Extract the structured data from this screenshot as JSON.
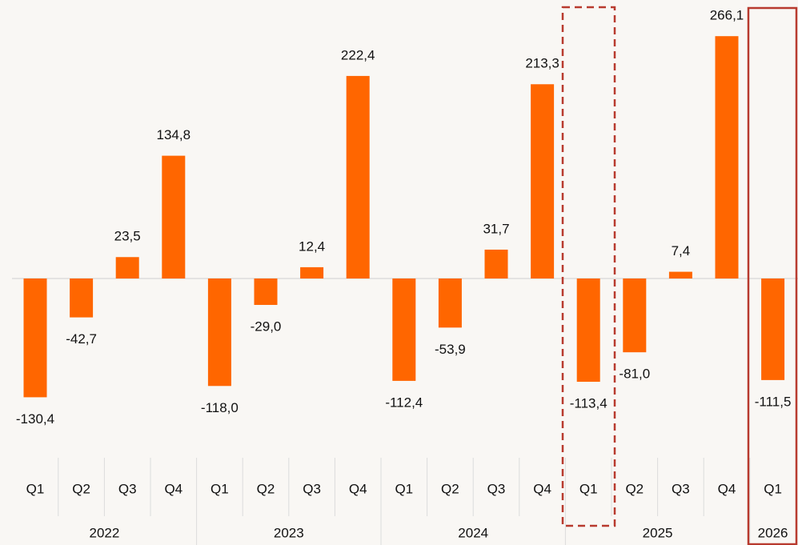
{
  "chart_data": {
    "type": "bar",
    "color": "#ff6600",
    "groups": [
      {
        "label": "2022",
        "categories": [
          "Q1",
          "Q2",
          "Q3",
          "Q4"
        ],
        "values": [
          -130.4,
          -42.7,
          23.5,
          134.8
        ],
        "value_labels": [
          "-130,4",
          "-42,7",
          "23,5",
          "134,8"
        ]
      },
      {
        "label": "2023",
        "categories": [
          "Q1",
          "Q2",
          "Q3",
          "Q4"
        ],
        "values": [
          -118.0,
          -29.0,
          12.4,
          222.4
        ],
        "value_labels": [
          "-118,0",
          "-29,0",
          "12,4",
          "222,4"
        ]
      },
      {
        "label": "2024",
        "categories": [
          "Q1",
          "Q2",
          "Q3",
          "Q4"
        ],
        "values": [
          -112.4,
          -53.9,
          31.7,
          213.3
        ],
        "value_labels": [
          "-112,4",
          "-53,9",
          "31,7",
          "213,3"
        ]
      },
      {
        "label": "2025",
        "categories": [
          "Q1",
          "Q2",
          "Q3",
          "Q4"
        ],
        "values": [
          -113.4,
          -81.0,
          7.4,
          266.1
        ],
        "value_labels": [
          "-113,4",
          "-81,0",
          "7,4",
          "266,1"
        ]
      },
      {
        "label": "2026",
        "categories": [
          "Q1"
        ],
        "values": [
          -111.5
        ],
        "value_labels": [
          "-111,5"
        ]
      }
    ]
  }
}
